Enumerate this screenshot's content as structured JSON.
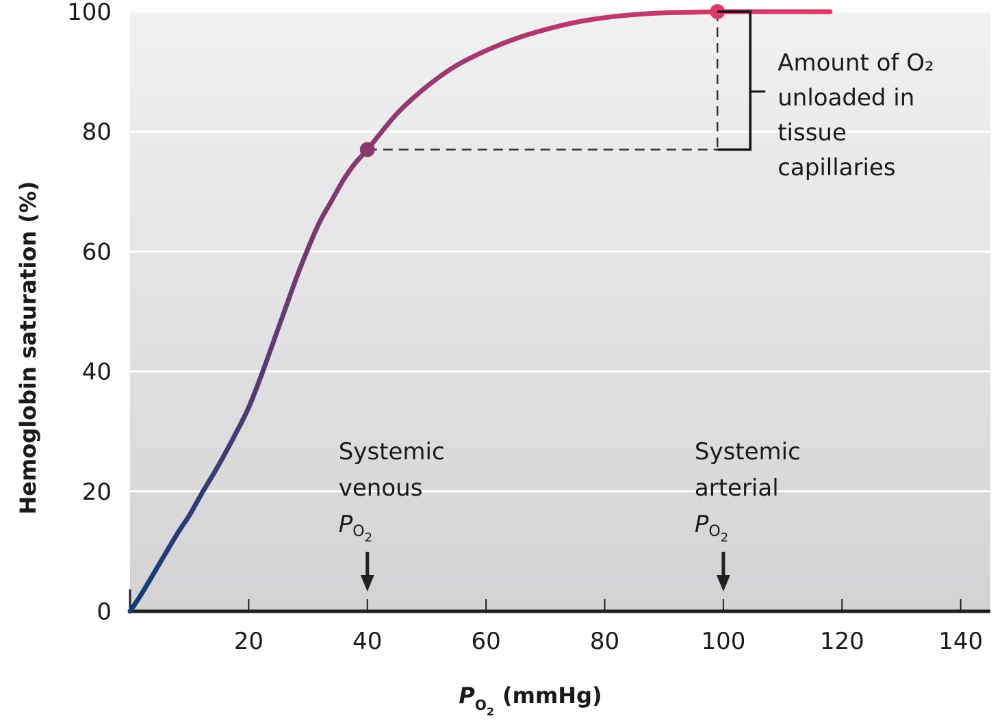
{
  "chart_data": {
    "type": "line",
    "xlabel": {
      "symbol": "P",
      "subscript": "O",
      "sub_subscript": "2",
      "unit": "(mmHg)"
    },
    "ylabel": "Hemoglobin saturation (%)",
    "xlim": [
      0,
      145
    ],
    "ylim": [
      0,
      100
    ],
    "x_ticks": [
      20,
      40,
      60,
      80,
      100,
      120,
      140
    ],
    "y_ticks": [
      0,
      20,
      40,
      60,
      80,
      100
    ],
    "grid": "horizontal",
    "series": [
      {
        "x": [
          0,
          2,
          5,
          8,
          10,
          12,
          15,
          18,
          20,
          22,
          24,
          26,
          28,
          30,
          32,
          34,
          36,
          38,
          40,
          45,
          50,
          55,
          60,
          65,
          70,
          75,
          80,
          85,
          90,
          95,
          100,
          105,
          110,
          118
        ],
        "y": [
          0,
          3,
          8,
          13,
          16,
          19.5,
          24.5,
          30,
          34,
          39,
          44.5,
          50,
          55.5,
          60.5,
          65,
          68.5,
          72,
          74.8,
          77,
          83,
          87.5,
          91,
          93.5,
          95.5,
          97,
          98.2,
          99,
          99.5,
          99.8,
          99.9,
          100,
          100,
          100,
          100
        ],
        "color_start": "#103c78",
        "color_end": "#e0386a"
      }
    ],
    "points": [
      {
        "x": 40,
        "y": 77,
        "color": "#8a3a6a"
      },
      {
        "x": 99,
        "y": 100,
        "color": "#e0386a"
      }
    ],
    "annotations": {
      "venous": {
        "lines": [
          "Systemic",
          "venous"
        ],
        "x": 40
      },
      "arterial": {
        "lines": [
          "Systemic",
          "arterial"
        ],
        "x": 100
      },
      "po2_symbol": {
        "symbol": "P",
        "subscript": "O",
        "sub_subscript": "2"
      },
      "bracket_label": [
        "Amount of O₂",
        "unloaded in",
        "tissue",
        "capillaries"
      ]
    }
  }
}
